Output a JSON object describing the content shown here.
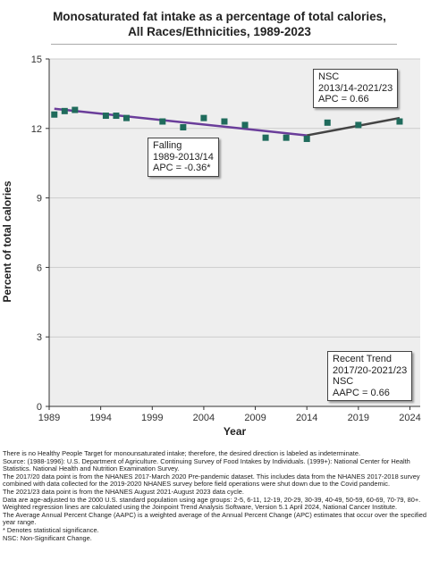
{
  "title_line1": "Monosaturated fat intake as a percentage of total calories,",
  "title_line2": "All Races/Ethnicities,  1989-2023",
  "colors": {
    "plot_bg": "#eeeeee",
    "grid": "#cccccc",
    "marker": "#1f6b5c",
    "falling_segment": "#6a3d9a",
    "nsc_segment": "#444444"
  },
  "annotations": {
    "falling": [
      "Falling",
      "1989-2013/14",
      "APC = -0.36*"
    ],
    "nsc": [
      "NSC",
      "2013/14-2021/23",
      "APC =  0.66"
    ],
    "recent": [
      "Recent Trend",
      "2017/20-2021/23",
      "NSC",
      "AAPC =  0.66"
    ]
  },
  "notes": [
    "There is no Healthy People Target for monounsaturated intake; therefore, the desired direction is labeled as indeterminate.",
    "Source: (1988-1996): U.S. Department of Agriculture. Continuing Survey of Food Intakes by Individuals. (1999+): National Center for Health Statistics. National Health and Nutrition Examination Survey.",
    "The 2017/20 data point is from the NHANES 2017-March 2020 Pre-pandemic dataset. This includes data from the NHANES 2017-2018 survey combined with data collected for the 2019-2020 NHANES survey before field operations were shut down due to the Covid pandemic.",
    "The 2021/23 data point is from the NHANES August 2021-August 2023 data cycle.",
    "Data are age-adjusted to the 2000 U.S. standard population using age groups: 2-5, 6-11, 12-19, 20-29, 30-39, 40-49, 50-59, 60-69, 70-79, 80+.",
    "Weighted regression lines are calculated using the Joinpoint Trend Analysis Software, Version 5.1 April 2024, National Cancer Institute.",
    "The Average Annual Percent Change (AAPC) is a weighted average of the Annual Percent Change (APC) estimates that occur over the specified year range.",
    "* Denotes statistical significance.",
    "NSC: Non-Significant Change."
  ],
  "chart_data": {
    "type": "scatter",
    "title": "Monosaturated fat intake as a percentage of total calories, All Races/Ethnicities,  1989-2023",
    "xlabel": "Year",
    "ylabel": "Percent of total calories",
    "xlim": [
      1989,
      2025
    ],
    "ylim": [
      0,
      15
    ],
    "x_ticks": [
      1989,
      1994,
      1999,
      2004,
      2009,
      2014,
      2019,
      2024
    ],
    "y_ticks": [
      0,
      3,
      6,
      9,
      12,
      15
    ],
    "grid": "horizontal",
    "points": {
      "x": [
        1989.5,
        1990.5,
        1991.5,
        1994.5,
        1995.5,
        1996.5,
        2000,
        2002,
        2004,
        2006,
        2008,
        2010,
        2012,
        2014,
        2016,
        2019,
        2023
      ],
      "y": [
        12.6,
        12.75,
        12.8,
        12.55,
        12.55,
        12.45,
        12.3,
        12.05,
        12.45,
        12.3,
        12.15,
        11.6,
        11.6,
        11.55,
        12.25,
        12.15,
        12.3
      ]
    },
    "trend_segments": [
      {
        "label": "Falling",
        "x": [
          1989.5,
          2014
        ],
        "y": [
          12.85,
          11.7
        ]
      },
      {
        "label": "NSC",
        "x": [
          2014,
          2023
        ],
        "y": [
          11.7,
          12.45
        ]
      }
    ]
  }
}
